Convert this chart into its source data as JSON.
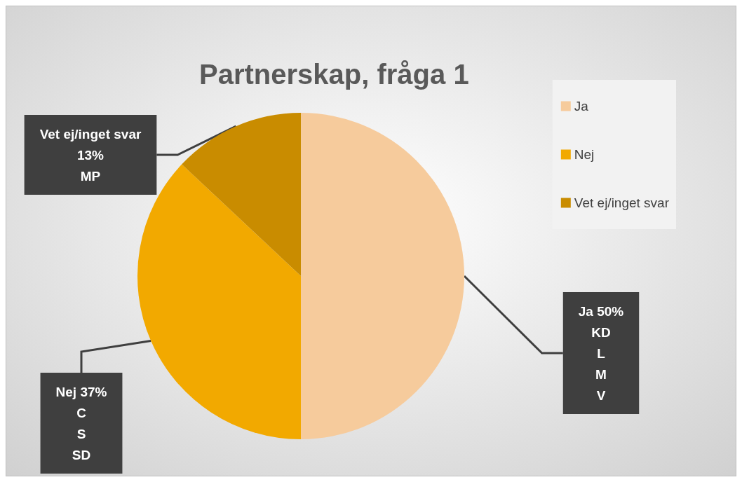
{
  "chart_data": {
    "type": "pie",
    "title": "Partnerskap, fråga 1",
    "categories": [
      "Ja",
      "Nej",
      "Vet ej/inget svar"
    ],
    "values": [
      50,
      37,
      13
    ],
    "colors": [
      "#f6cb9c",
      "#f2a900",
      "#c98c00"
    ],
    "value_labels": [
      "Ja 50%\nKD\nL\nM\nV",
      "Nej 37%\nC\nS\nSD",
      "Vet ej/inget svar\n13%\nMP"
    ],
    "legend": "right"
  }
}
